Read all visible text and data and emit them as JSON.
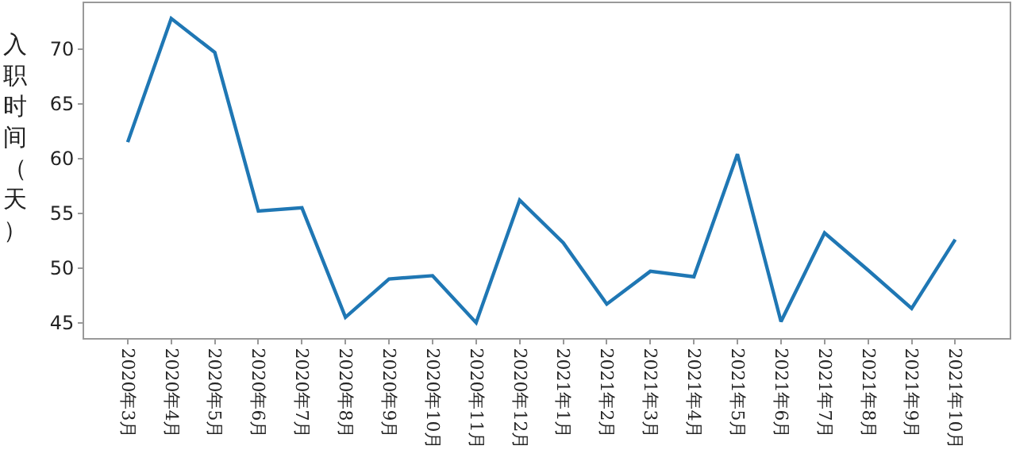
{
  "chart_data": {
    "type": "line",
    "ylabel": "入职时间（天）",
    "categories": [
      "2020年3月",
      "2020年4月",
      "2020年5月",
      "2020年6月",
      "2020年7月",
      "2020年8月",
      "2020年9月",
      "2020年10月",
      "2020年11月",
      "2020年12月",
      "2021年1月",
      "2021年2月",
      "2021年3月",
      "2021年4月",
      "2021年5月",
      "2021年6月",
      "2021年7月",
      "2021年8月",
      "2021年9月",
      "2021年10月"
    ],
    "series": [
      {
        "color": "#1f77b4",
        "values": [
          61.5,
          72.8,
          69.7,
          55.2,
          55.5,
          45.5,
          49.0,
          49.3,
          45.0,
          56.2,
          52.3,
          46.7,
          49.7,
          49.2,
          60.4,
          45.1,
          53.2,
          49.8,
          46.3,
          52.6
        ]
      }
    ],
    "ylim": [
      43.6,
      74.2
    ],
    "yticks": [
      45,
      50,
      55,
      60,
      65,
      70
    ]
  }
}
